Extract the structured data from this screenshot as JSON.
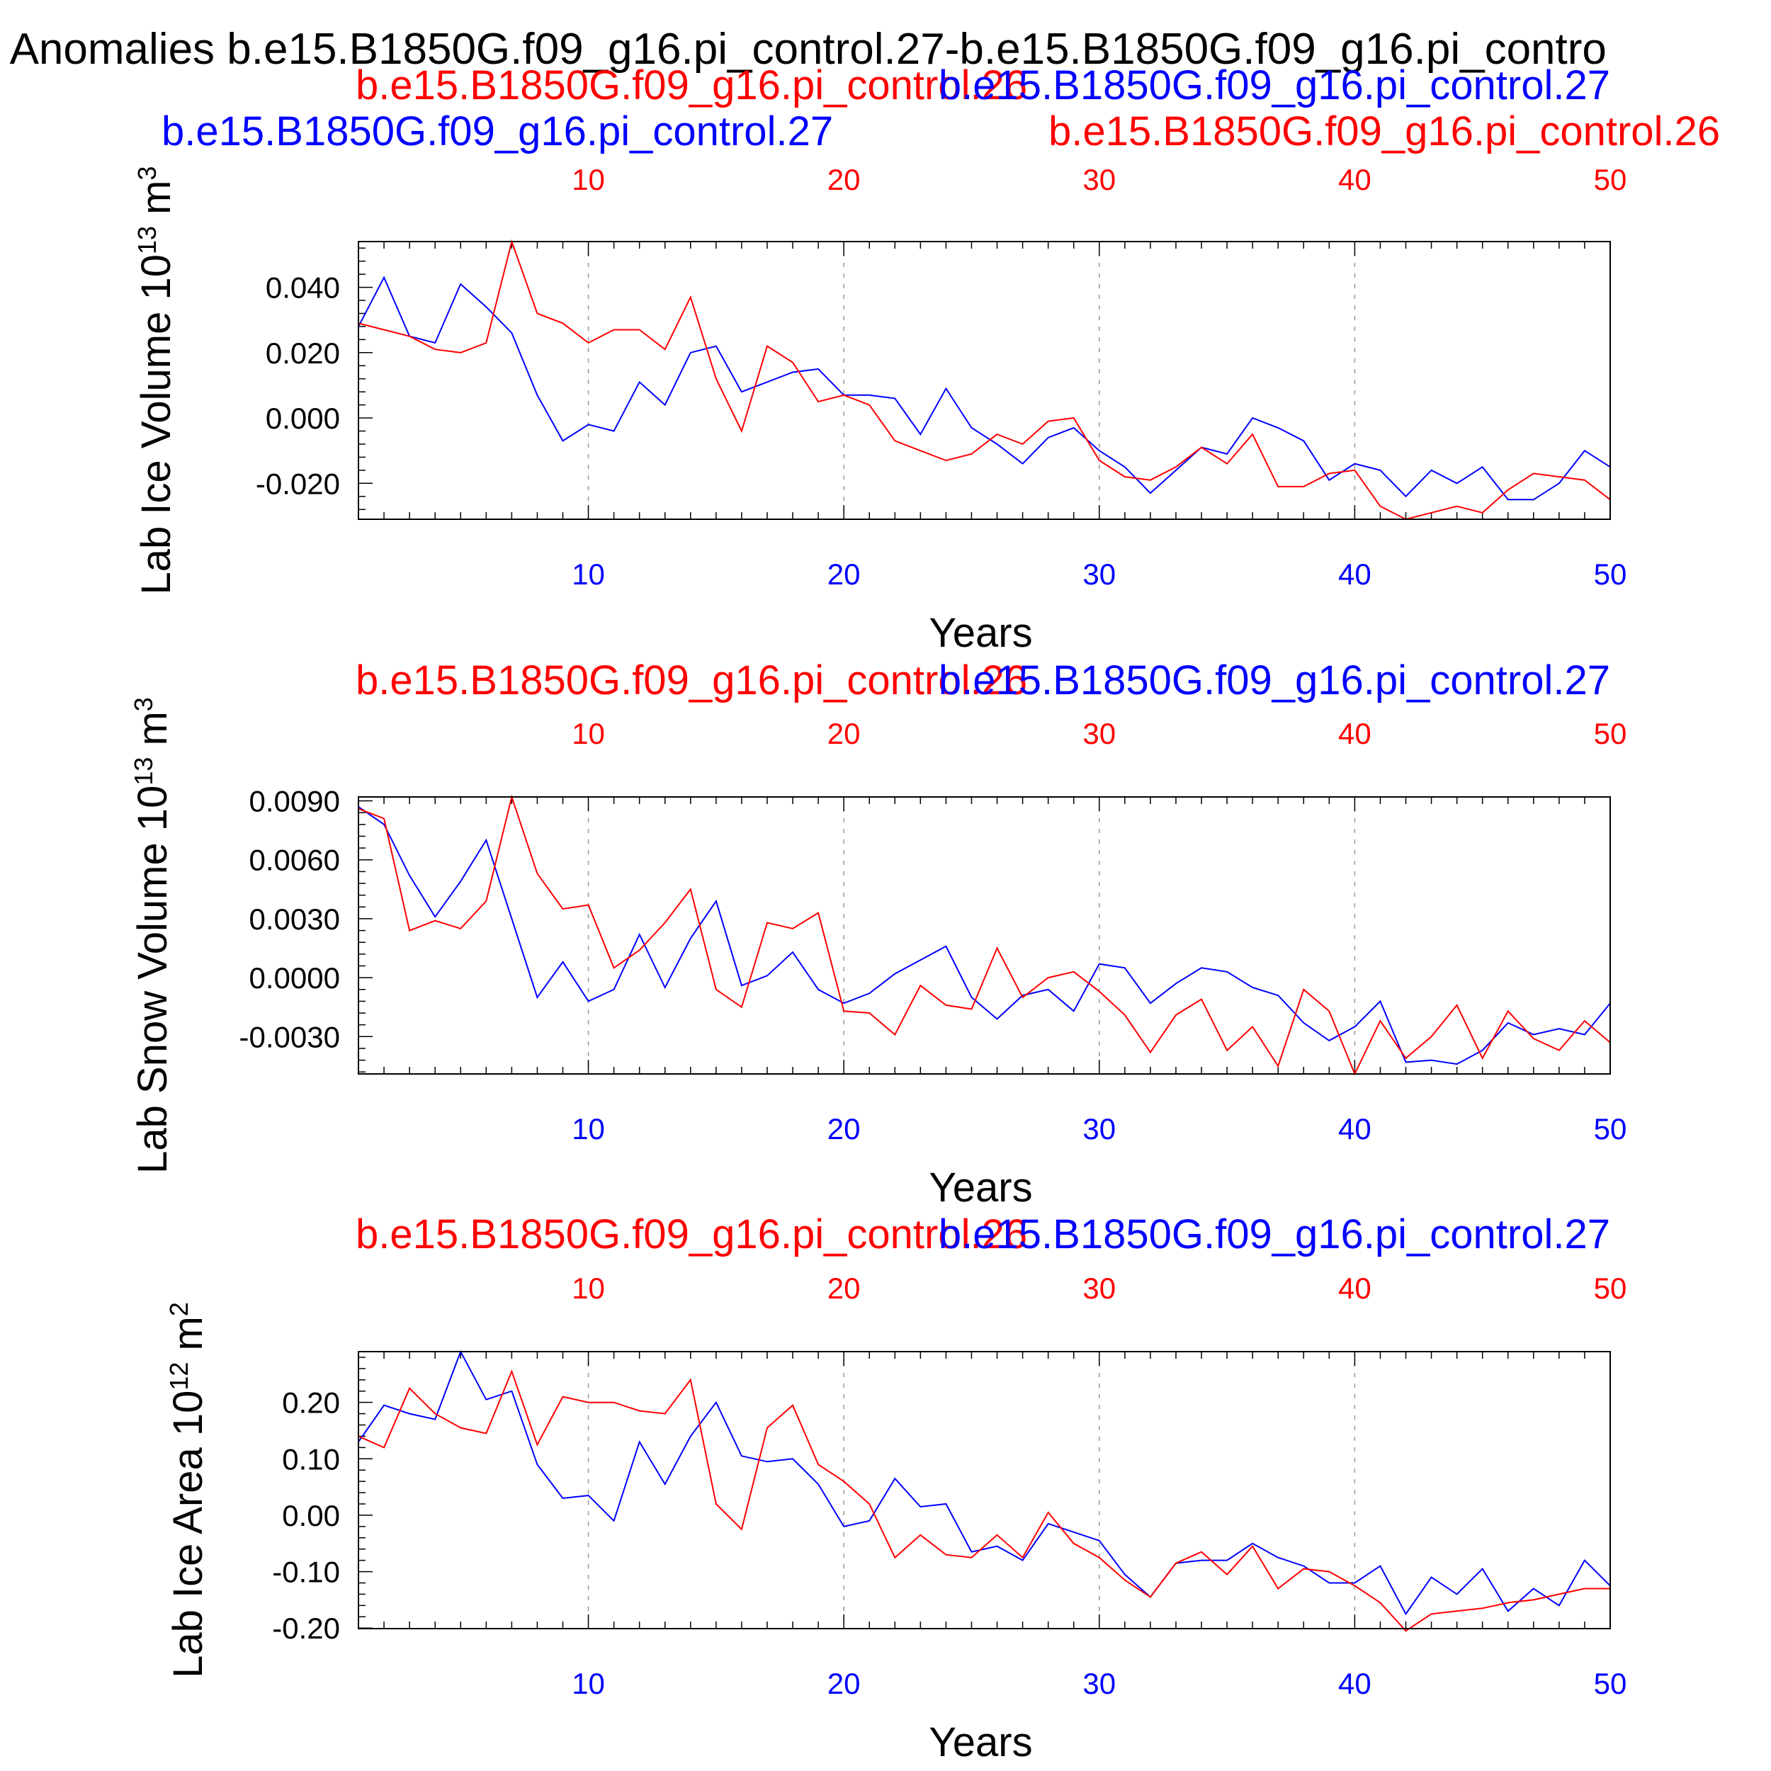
{
  "figure": {
    "title": "l Anomalies b.e15.B1850G.f09_g16.pi_control.27-b.e15.B1850G.f09_g16.pi_contro",
    "colors": {
      "series_27": "#0000ff",
      "series_26": "#ff0000",
      "axis": "#000000",
      "grid": "#999999"
    }
  },
  "chart_data": [
    {
      "type": "line",
      "panel": "top",
      "ylabel": "Lab Ice Volume 10",
      "ylabel_exp": "13",
      "ylabel_unit": " m",
      "ylabel_unit_exp": "3",
      "xlabel": "Years",
      "ylim": [
        -0.031,
        0.054
      ],
      "y_ticks": [
        0.04,
        0.02,
        0.0,
        -0.02
      ],
      "y_tick_labels": [
        "0.040",
        "0.020",
        "0.000",
        "-0.020"
      ],
      "xlim": [
        1,
        50
      ],
      "x_ticks": [
        10,
        20,
        30,
        40,
        50
      ],
      "x_tick_labels": [
        "10",
        "20",
        "30",
        "40",
        "50"
      ],
      "grid": "vertical dashed at x ticks",
      "top_labels": [
        {
          "text": "b.e15.B1850G.f09_g16.pi_control.26",
          "color": "#ff0000",
          "anchor": "start"
        },
        {
          "text": "b.e15.B1850G.f09_g16.pi_control.27",
          "color": "#0000ff",
          "anchor": "end"
        },
        {
          "text": "b.e15.B1850G.f09_g16.pi_control.27",
          "color": "#0000ff",
          "anchor": "start"
        },
        {
          "text": "b.e15.B1850G.f09_g16.pi_control.26",
          "color": "#ff0000",
          "anchor": "start"
        }
      ],
      "x": [
        1,
        2,
        3,
        4,
        5,
        6,
        7,
        8,
        9,
        10,
        11,
        12,
        13,
        14,
        15,
        16,
        17,
        18,
        19,
        20,
        21,
        22,
        23,
        24,
        25,
        26,
        27,
        28,
        29,
        30,
        31,
        32,
        33,
        34,
        35,
        36,
        37,
        38,
        39,
        40,
        41,
        42,
        43,
        44,
        45,
        46,
        47,
        48,
        49,
        50
      ],
      "series": [
        {
          "name": "b.e15.B1850G.f09_g16.pi_control.27",
          "color": "#0000ff",
          "values": [
            0.028,
            0.043,
            0.025,
            0.023,
            0.041,
            0.034,
            0.026,
            0.007,
            -0.007,
            -0.002,
            -0.004,
            0.011,
            0.004,
            0.02,
            0.022,
            0.008,
            0.011,
            0.014,
            0.015,
            0.007,
            0.007,
            0.006,
            -0.005,
            0.009,
            -0.003,
            -0.008,
            -0.014,
            -0.006,
            -0.003,
            -0.01,
            -0.015,
            -0.023,
            -0.016,
            -0.009,
            -0.011,
            0.0,
            -0.003,
            -0.007,
            -0.019,
            -0.014,
            -0.016,
            -0.024,
            -0.016,
            -0.02,
            -0.015,
            -0.025,
            -0.025,
            -0.02,
            -0.01,
            -0.015
          ]
        },
        {
          "name": "b.e15.B1850G.f09_g16.pi_control.26",
          "color": "#ff0000",
          "values": [
            0.029,
            0.027,
            0.025,
            0.021,
            0.02,
            0.023,
            0.054,
            0.032,
            0.029,
            0.023,
            0.027,
            0.027,
            0.021,
            0.037,
            0.012,
            -0.004,
            0.022,
            0.017,
            0.005,
            0.007,
            0.004,
            -0.007,
            -0.01,
            -0.013,
            -0.011,
            -0.005,
            -0.008,
            -0.001,
            0.0,
            -0.013,
            -0.018,
            -0.019,
            -0.015,
            -0.009,
            -0.014,
            -0.005,
            -0.021,
            -0.021,
            -0.017,
            -0.016,
            -0.027,
            -0.031,
            -0.029,
            -0.027,
            -0.029,
            -0.022,
            -0.017,
            -0.018,
            -0.019,
            -0.025
          ]
        }
      ]
    },
    {
      "type": "line",
      "panel": "middle",
      "ylabel": "Lab Snow Volume 10",
      "ylabel_exp": "13",
      "ylabel_unit": " m",
      "ylabel_unit_exp": "3",
      "xlabel": "Years",
      "ylim": [
        -0.0049,
        0.0092
      ],
      "y_ticks": [
        0.009,
        0.006,
        0.003,
        0.0,
        -0.003
      ],
      "y_tick_labels": [
        "0.0090",
        "0.0060",
        "0.0030",
        "0.0000",
        "-0.0030"
      ],
      "xlim": [
        1,
        50
      ],
      "x_ticks": [
        10,
        20,
        30,
        40,
        50
      ],
      "x_tick_labels": [
        "10",
        "20",
        "30",
        "40",
        "50"
      ],
      "grid": "vertical dashed at x ticks",
      "top_labels": [
        {
          "text": "b.e15.B1850G.f09_g16.pi_control.26",
          "color": "#ff0000",
          "anchor": "start"
        },
        {
          "text": "b.e15.B1850G.f09_g16.pi_control.27",
          "color": "#0000ff",
          "anchor": "end"
        }
      ],
      "x": [
        1,
        2,
        3,
        4,
        5,
        6,
        7,
        8,
        9,
        10,
        11,
        12,
        13,
        14,
        15,
        16,
        17,
        18,
        19,
        20,
        21,
        22,
        23,
        24,
        25,
        26,
        27,
        28,
        29,
        30,
        31,
        32,
        33,
        34,
        35,
        36,
        37,
        38,
        39,
        40,
        41,
        42,
        43,
        44,
        45,
        46,
        47,
        48,
        49,
        50
      ],
      "series": [
        {
          "name": "b.e15.B1850G.f09_g16.pi_control.27",
          "color": "#0000ff",
          "values": [
            0.0087,
            0.0078,
            0.0052,
            0.0031,
            0.0049,
            0.007,
            0.003,
            -0.001,
            0.0008,
            -0.0012,
            -0.0006,
            0.0022,
            -0.0005,
            0.002,
            0.0039,
            -0.0004,
            0.0001,
            0.0013,
            -0.0006,
            -0.0013,
            -0.0008,
            0.0002,
            0.0009,
            0.0016,
            -0.001,
            -0.0021,
            -0.0009,
            -0.0006,
            -0.0017,
            0.0007,
            0.0005,
            -0.0013,
            -0.0003,
            0.0005,
            0.0003,
            -0.0005,
            -0.0009,
            -0.0023,
            -0.0032,
            -0.0025,
            -0.0012,
            -0.0043,
            -0.0042,
            -0.0044,
            -0.0037,
            -0.0023,
            -0.0029,
            -0.0026,
            -0.0029,
            -0.0013
          ]
        },
        {
          "name": "b.e15.B1850G.f09_g16.pi_control.26",
          "color": "#ff0000",
          "values": [
            0.0086,
            0.0081,
            0.0024,
            0.0029,
            0.0025,
            0.0039,
            0.0092,
            0.0053,
            0.0035,
            0.0037,
            0.0005,
            0.0014,
            0.0028,
            0.0045,
            -0.0006,
            -0.0015,
            0.0028,
            0.0025,
            0.0033,
            -0.0017,
            -0.0018,
            -0.0029,
            -0.0004,
            -0.0014,
            -0.0016,
            0.0015,
            -0.001,
            0.0,
            0.0003,
            -0.0007,
            -0.0019,
            -0.0038,
            -0.0019,
            -0.0011,
            -0.0037,
            -0.0025,
            -0.0045,
            -0.0006,
            -0.0017,
            -0.0049,
            -0.0022,
            -0.0041,
            -0.003,
            -0.0014,
            -0.0041,
            -0.0017,
            -0.0031,
            -0.0037,
            -0.0022,
            -0.0033
          ]
        }
      ]
    },
    {
      "type": "line",
      "panel": "bottom",
      "ylabel": "Lab Ice Area 10",
      "ylabel_exp": "12",
      "ylabel_unit": " m",
      "ylabel_unit_exp": "2",
      "xlabel": "Years",
      "ylim": [
        -0.201,
        0.29
      ],
      "y_ticks": [
        0.2,
        0.1,
        0.0,
        -0.1,
        -0.2
      ],
      "y_tick_labels": [
        "0.20",
        "0.10",
        "0.00",
        "-0.10",
        "-0.20"
      ],
      "xlim": [
        1,
        50
      ],
      "x_ticks": [
        10,
        20,
        30,
        40,
        50
      ],
      "x_tick_labels": [
        "10",
        "20",
        "30",
        "40",
        "50"
      ],
      "grid": "vertical dashed at x ticks",
      "top_labels": [
        {
          "text": "b.e15.B1850G.f09_g16.pi_control.26",
          "color": "#ff0000",
          "anchor": "start"
        },
        {
          "text": "b.e15.B1850G.f09_g16.pi_control.27",
          "color": "#0000ff",
          "anchor": "end"
        }
      ],
      "x": [
        1,
        2,
        3,
        4,
        5,
        6,
        7,
        8,
        9,
        10,
        11,
        12,
        13,
        14,
        15,
        16,
        17,
        18,
        19,
        20,
        21,
        22,
        23,
        24,
        25,
        26,
        27,
        28,
        29,
        30,
        31,
        32,
        33,
        34,
        35,
        36,
        37,
        38,
        39,
        40,
        41,
        42,
        43,
        44,
        45,
        46,
        47,
        48,
        49,
        50
      ],
      "series": [
        {
          "name": "b.e15.B1850G.f09_g16.pi_control.27",
          "color": "#0000ff",
          "values": [
            0.13,
            0.195,
            0.18,
            0.17,
            0.29,
            0.205,
            0.22,
            0.09,
            0.03,
            0.035,
            -0.01,
            0.13,
            0.055,
            0.14,
            0.2,
            0.105,
            0.095,
            0.1,
            0.055,
            -0.02,
            -0.01,
            0.065,
            0.015,
            0.02,
            -0.065,
            -0.055,
            -0.08,
            -0.015,
            -0.03,
            -0.045,
            -0.105,
            -0.145,
            -0.085,
            -0.08,
            -0.08,
            -0.05,
            -0.075,
            -0.09,
            -0.12,
            -0.12,
            -0.09,
            -0.175,
            -0.11,
            -0.14,
            -0.095,
            -0.17,
            -0.13,
            -0.16,
            -0.08,
            -0.125
          ]
        },
        {
          "name": "b.e15.B1850G.f09_g16.pi_control.26",
          "color": "#ff0000",
          "values": [
            0.14,
            0.12,
            0.225,
            0.18,
            0.155,
            0.145,
            0.255,
            0.125,
            0.21,
            0.2,
            0.2,
            0.185,
            0.18,
            0.24,
            0.02,
            -0.025,
            0.155,
            0.195,
            0.09,
            0.06,
            0.02,
            -0.075,
            -0.035,
            -0.07,
            -0.075,
            -0.035,
            -0.075,
            0.005,
            -0.05,
            -0.075,
            -0.115,
            -0.145,
            -0.085,
            -0.065,
            -0.105,
            -0.055,
            -0.13,
            -0.095,
            -0.1,
            -0.125,
            -0.155,
            -0.205,
            -0.175,
            -0.17,
            -0.165,
            -0.155,
            -0.15,
            -0.14,
            -0.13,
            -0.13
          ]
        }
      ]
    }
  ]
}
